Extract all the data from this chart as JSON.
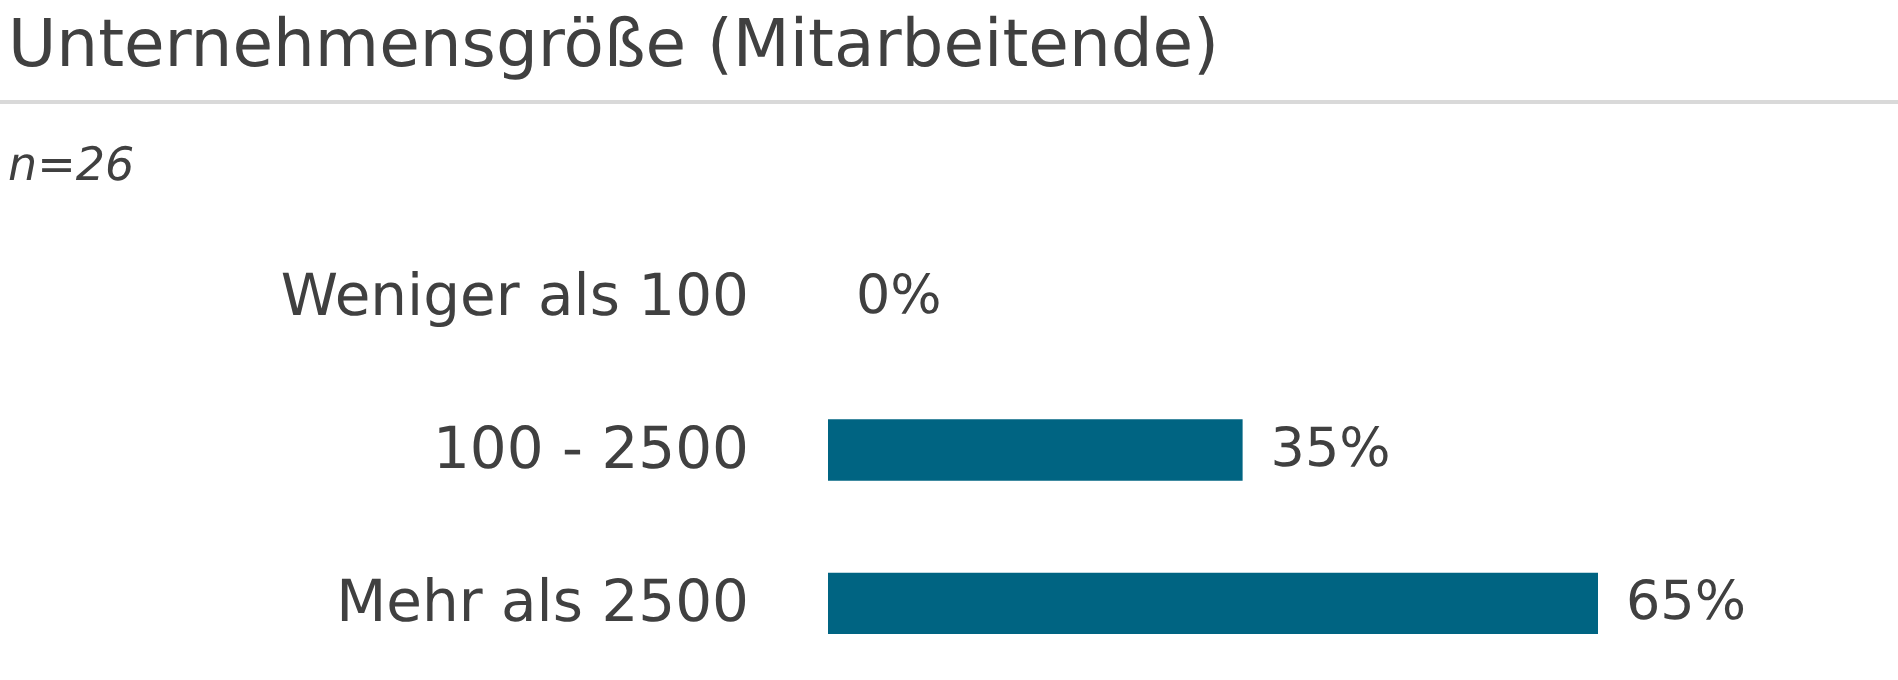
{
  "chart_data": {
    "type": "bar",
    "orientation": "horizontal",
    "title": "Unternehmensgröße (Mitarbeitende)",
    "subtitle": "n=26",
    "categories": [
      "Weniger als 100",
      "100 - 2500",
      "Mehr als 2500"
    ],
    "values": [
      0,
      35,
      65
    ],
    "color": "#006482",
    "value_labels": [
      "0%",
      "35%",
      "65%"
    ]
  }
}
